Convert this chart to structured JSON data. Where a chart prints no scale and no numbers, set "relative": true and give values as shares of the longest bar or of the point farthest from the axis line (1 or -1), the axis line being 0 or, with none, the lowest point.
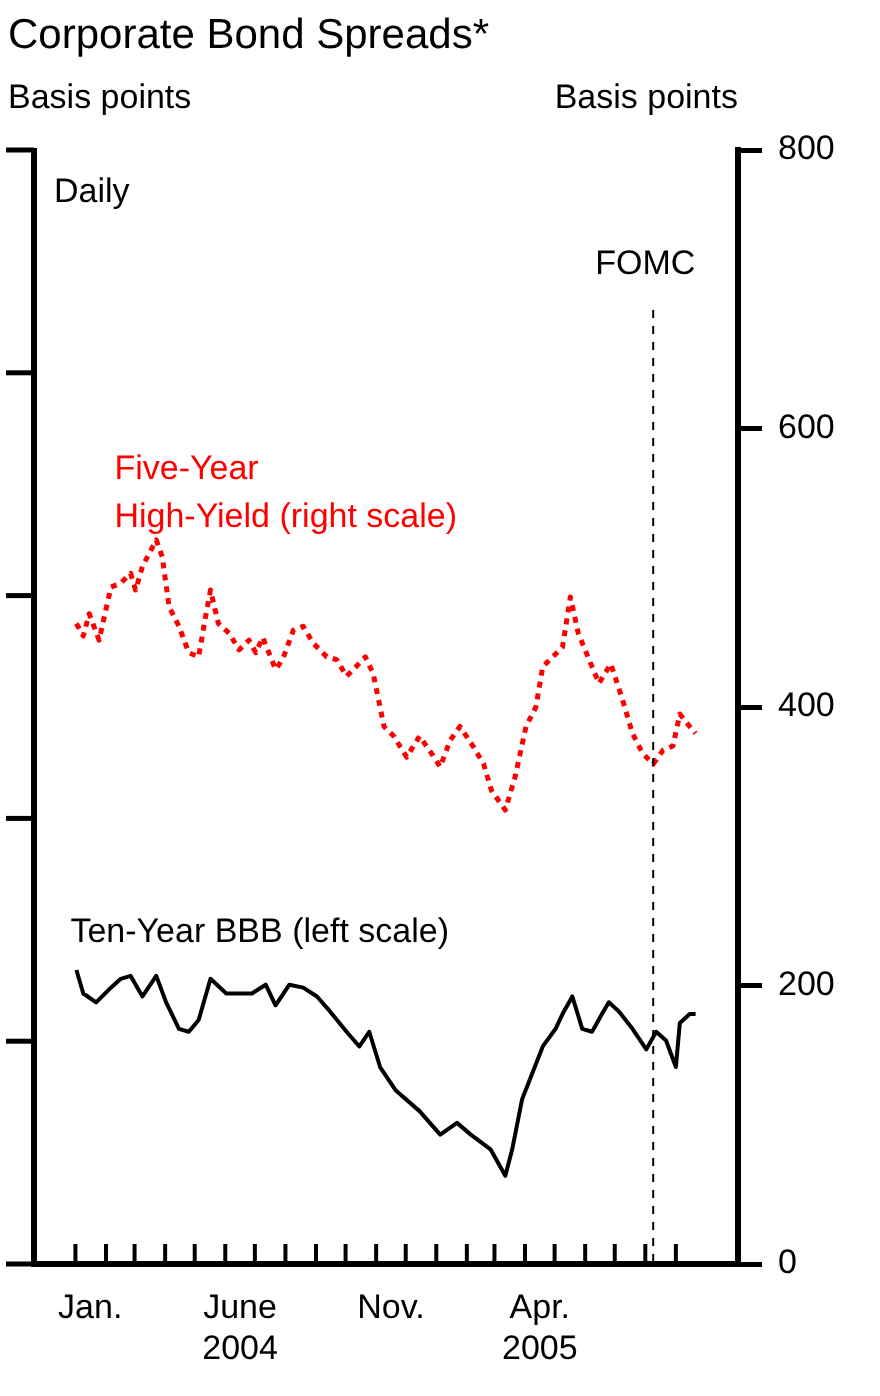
{
  "chart_data": [
    {
      "type": "line",
      "title": "Corporate Bond Spreads*",
      "ylabel": "Basis points",
      "y2label": "Basis points",
      "annotations": [
        "Daily"
      ],
      "xlim": [
        "2003-11-20",
        "2005-11-03"
      ],
      "xticks": [
        {
          "value": "2004-01-01",
          "label": null
        },
        {
          "value": "2004-02-01",
          "label": null
        },
        {
          "value": "2004-03-01",
          "label": null
        },
        {
          "value": "2004-04-01",
          "label": null
        },
        {
          "value": "2004-05-01",
          "label": null
        },
        {
          "value": "2004-06-01",
          "label": null
        },
        {
          "value": "2004-07-01",
          "label": null
        },
        {
          "value": "2004-08-01",
          "label": null
        },
        {
          "value": "2004-09-01",
          "label": null
        },
        {
          "value": "2004-10-01",
          "label": null
        },
        {
          "value": "2004-11-01",
          "label": null
        },
        {
          "value": "2004-12-01",
          "label": null
        },
        {
          "value": "2005-01-01",
          "label": null
        },
        {
          "value": "2005-02-01",
          "label": null
        },
        {
          "value": "2005-03-01",
          "label": null
        },
        {
          "value": "2005-04-01",
          "label": null
        },
        {
          "value": "2005-05-01",
          "label": null
        },
        {
          "value": "2005-06-01",
          "label": null
        },
        {
          "value": "2005-07-01",
          "label": null
        },
        {
          "value": "2005-08-01",
          "label": null
        },
        {
          "value": "2005-09-01",
          "label": null
        },
        {
          "value": "2004-01-16",
          "label": "Jan."
        },
        {
          "value": "2004-06-16",
          "label": "June\n2004"
        },
        {
          "value": "2004-11-16",
          "label": "Nov."
        },
        {
          "value": "2005-04-16",
          "label": "Apr.\n2005"
        }
      ],
      "y2lim": [
        0,
        800
      ],
      "y2ticks": [
        0,
        200,
        400,
        600,
        800
      ],
      "grid": false,
      "legend": false,
      "marker": "none",
      "ref_lines": [
        {
          "axis": "x",
          "value": "2005-08-09",
          "label": "FOMC",
          "color": "#000000",
          "line_style": "dashed"
        }
      ],
      "series": [
        {
          "name": "Five-Year\nHigh-Yield (right scale)",
          "color": "#ff0000",
          "axis": "y2",
          "line_style": "dotted",
          "x": [
            "2004-01-02",
            "2004-01-09",
            "2004-01-15",
            "2004-01-25",
            "2004-02-06",
            "2004-02-16",
            "2004-02-26",
            "2004-03-02",
            "2004-03-09",
            "2004-03-23",
            "2004-03-29",
            "2004-04-05",
            "2004-04-15",
            "2004-04-25",
            "2004-05-05",
            "2004-05-12",
            "2004-05-17",
            "2004-05-25",
            "2004-06-05",
            "2004-06-15",
            "2004-06-25",
            "2004-07-02",
            "2004-07-09",
            "2004-07-22",
            "2004-07-29",
            "2004-08-09",
            "2004-08-19",
            "2004-08-29",
            "2004-09-12",
            "2004-09-22",
            "2004-10-02",
            "2004-10-09",
            "2004-10-21",
            "2004-10-29",
            "2004-11-09",
            "2004-11-19",
            "2004-11-25",
            "2004-12-02",
            "2004-12-15",
            "2004-12-25",
            "2005-01-05",
            "2005-01-15",
            "2005-01-25",
            "2005-02-08",
            "2005-02-18",
            "2005-02-26",
            "2005-03-12",
            "2005-03-22",
            "2005-04-02",
            "2005-04-12",
            "2005-04-19",
            "2005-04-29",
            "2005-05-09",
            "2005-05-17",
            "2005-05-25",
            "2005-06-05",
            "2005-06-15",
            "2005-06-27",
            "2005-07-09",
            "2005-07-19",
            "2005-07-29",
            "2005-08-09",
            "2005-08-19",
            "2005-08-29",
            "2005-09-05",
            "2005-09-15",
            "2005-09-21"
          ],
          "values": [
            460,
            451,
            467,
            448,
            486,
            489,
            496,
            484,
            501,
            520,
            508,
            472,
            458,
            439,
            436,
            465,
            484,
            460,
            453,
            441,
            448,
            439,
            450,
            427,
            434,
            455,
            458,
            446,
            436,
            434,
            422,
            427,
            436,
            424,
            386,
            379,
            372,
            364,
            379,
            369,
            357,
            376,
            386,
            371,
            359,
            340,
            326,
            350,
            386,
            400,
            429,
            436,
            443,
            479,
            453,
            434,
            417,
            431,
            405,
            381,
            367,
            359,
            369,
            372,
            395,
            386,
            381
          ]
        }
      ]
    },
    {
      "type": "line",
      "relative": true,
      "tick_labels": false,
      "xlim": [
        "2003-11-20",
        "2005-11-03"
      ],
      "legend": false,
      "marker": "none",
      "series": [
        {
          "name": "Ten-Year BBB (left scale)",
          "color": "#000000",
          "line_style": "solid",
          "x": [
            "2004-01-02",
            "2004-01-09",
            "2004-01-22",
            "2004-02-06",
            "2004-02-16",
            "2004-02-26",
            "2004-03-09",
            "2004-03-23",
            "2004-04-02",
            "2004-04-15",
            "2004-04-25",
            "2004-05-05",
            "2004-05-17",
            "2004-06-02",
            "2004-06-15",
            "2004-06-28",
            "2004-07-12",
            "2004-07-22",
            "2004-08-05",
            "2004-08-19",
            "2004-09-02",
            "2004-09-15",
            "2004-10-02",
            "2004-10-15",
            "2004-10-25",
            "2004-11-05",
            "2004-11-21",
            "2004-12-15",
            "2005-01-05",
            "2005-01-22",
            "2005-02-05",
            "2005-02-25",
            "2005-03-12",
            "2005-03-19",
            "2005-03-29",
            "2005-04-05",
            "2005-04-19",
            "2005-05-02",
            "2005-05-09",
            "2005-05-19",
            "2005-05-29",
            "2005-06-08",
            "2005-06-18",
            "2005-06-25",
            "2005-07-05",
            "2005-07-19",
            "2005-08-02",
            "2005-08-12",
            "2005-08-22",
            "2005-09-01",
            "2005-09-05",
            "2005-09-15",
            "2005-09-21"
          ],
          "values": [
            1,
            0.92,
            0.89,
            0.94,
            0.97,
            0.98,
            0.91,
            0.98,
            0.89,
            0.8,
            0.79,
            0.83,
            0.97,
            0.92,
            0.92,
            0.92,
            0.95,
            0.88,
            0.95,
            0.94,
            0.91,
            0.86,
            0.79,
            0.74,
            0.79,
            0.67,
            0.59,
            0.52,
            0.44,
            0.48,
            0.44,
            0.39,
            0.3,
            0.39,
            0.56,
            0.62,
            0.74,
            0.8,
            0.85,
            0.91,
            0.8,
            0.79,
            0.85,
            0.89,
            0.86,
            0.8,
            0.73,
            0.79,
            0.76,
            0.67,
            0.82,
            0.85,
            0.85
          ]
        }
      ]
    }
  ]
}
